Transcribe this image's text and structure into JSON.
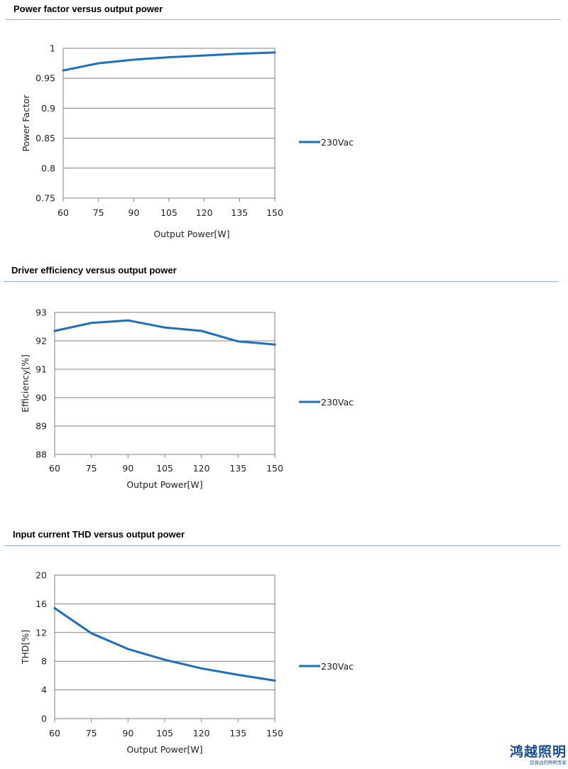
{
  "sections": [
    {
      "title": "Power factor versus output power"
    },
    {
      "title": "Driver efficiency versus output power"
    },
    {
      "title": "Input current THD versus output power"
    }
  ],
  "colors": {
    "series": "#1f6fba",
    "grid": "#808080",
    "rule": "#8fb2cf",
    "logo": "#1a4f9c"
  },
  "chart_data": [
    {
      "type": "line",
      "title": "Power factor versus output power",
      "xlabel": "Output Power[W]",
      "ylabel": "Power Factor",
      "x": [
        60,
        75,
        90,
        105,
        120,
        135,
        150
      ],
      "xticks": [
        "60",
        "75",
        "90",
        "105",
        "120",
        "135",
        "150"
      ],
      "ylim": [
        0.75,
        1
      ],
      "yticks": [
        0.75,
        0.8,
        0.85,
        0.9,
        0.95,
        1
      ],
      "ytick_labels": [
        "0.75",
        "0.8",
        "0.85",
        "0.9",
        "0.95",
        "1"
      ],
      "series": [
        {
          "name": "230Vac",
          "values": [
            0.963,
            0.975,
            0.981,
            0.985,
            0.988,
            0.991,
            0.993
          ]
        }
      ],
      "grid": true,
      "legend": "right"
    },
    {
      "type": "line",
      "title": "Driver efficiency versus output power",
      "xlabel": "Output Power[W]",
      "ylabel": "Efficiency[%]",
      "x": [
        60,
        75,
        90,
        105,
        120,
        135,
        150
      ],
      "xticks": [
        "60",
        "75",
        "90",
        "105",
        "120",
        "135",
        "150"
      ],
      "ylim": [
        88,
        93
      ],
      "yticks": [
        88,
        89,
        90,
        91,
        92,
        93
      ],
      "ytick_labels": [
        "88",
        "89",
        "90",
        "91",
        "92",
        "93"
      ],
      "series": [
        {
          "name": "230Vac",
          "values": [
            92.35,
            92.63,
            92.72,
            92.47,
            92.35,
            91.98,
            91.87
          ]
        }
      ],
      "grid": true,
      "legend": "right"
    },
    {
      "type": "line",
      "title": "Input current THD versus output power",
      "xlabel": "Output Power[W]",
      "ylabel": "THD[%]",
      "x": [
        60,
        75,
        90,
        105,
        120,
        135,
        150
      ],
      "xticks": [
        "60",
        "75",
        "90",
        "105",
        "120",
        "135",
        "150"
      ],
      "ylim": [
        0,
        20
      ],
      "yticks": [
        0,
        4,
        8,
        12,
        16,
        20
      ],
      "ytick_labels": [
        "0",
        "4",
        "8",
        "12",
        "16",
        "20"
      ],
      "series": [
        {
          "name": "230Vac",
          "values": [
            15.4,
            11.9,
            9.7,
            8.2,
            7.0,
            6.1,
            5.3
          ]
        }
      ],
      "grid": true,
      "legend": "right"
    }
  ],
  "logo": {
    "main": "鸿越照明",
    "tagline": "您身边的照明专家"
  }
}
